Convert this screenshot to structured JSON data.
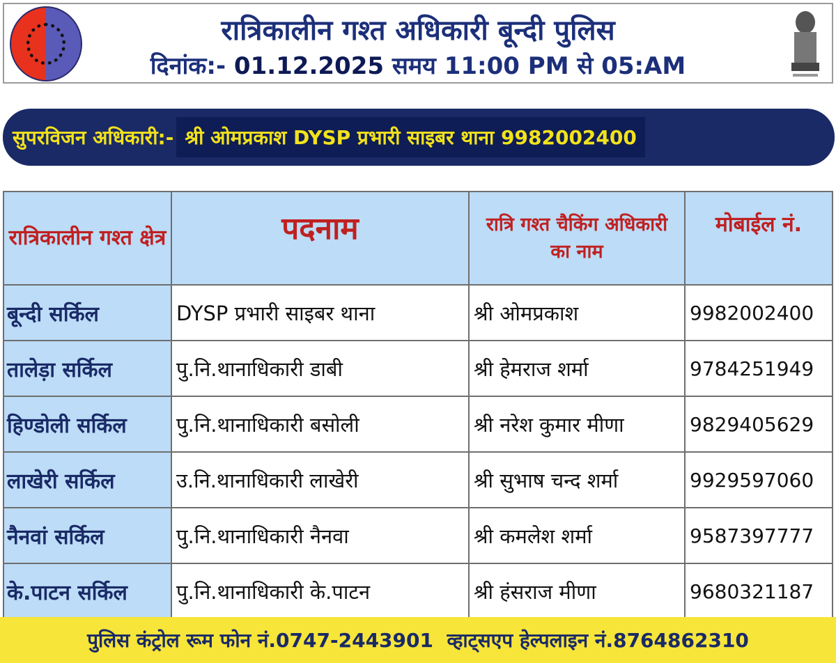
{
  "header": {
    "title": "रात्रिकालीन गश्त अधिकारी बून्दी पुलिस",
    "date_label": "दिनांक:-",
    "date": "01.12.2025",
    "time": "समय 11:00 PM से 05:AM",
    "left_logo": "rajasthan-police-logo",
    "right_logo": "ashoka-emblem"
  },
  "supervision": {
    "label": "सुपरविजन अधिकारी:-",
    "value": "श्री ओमप्रकाश DYSP प्रभारी साइबर थाना 9982002400"
  },
  "table": {
    "headers": [
      "रात्रिकालीन गश्त क्षेत्र",
      "पदनाम",
      "रात्रि गश्त चैकिंग अधिकारी का नाम",
      "मोबाईल नं."
    ],
    "rows": [
      [
        "बून्दी सर्किल",
        "DYSP प्रभारी साइबर थाना",
        "श्री ओमप्रकाश",
        "9982002400"
      ],
      [
        "तालेड़ा सर्किल",
        "पु.नि.थानाधिकारी डाबी",
        "श्री हेमराज शर्मा",
        "9784251949"
      ],
      [
        "हिण्डोली सर्किल",
        "पु.नि.थानाधिकारी बसोली",
        "श्री नरेश कुमार मीणा",
        "9829405629"
      ],
      [
        "लाखेरी सर्किल",
        "उ.नि.थानाधिकारी लाखेरी",
        "श्री सुभाष चन्द शर्मा",
        "9929597060"
      ],
      [
        "नैनवां सर्किल",
        "पु.नि.थानाधिकारी नैनवा",
        "श्री कमलेश शर्मा",
        "9587397777"
      ],
      [
        "के.पाटन सर्किल",
        "पु.नि.थानाधिकारी के.पाटन",
        "श्री हंसराज मीणा",
        "9680321187"
      ]
    ]
  },
  "footer": {
    "text": "पुलिस कंट्रोल रूम फोन नं.0747-2443901  व्हाट्सएप हेल्पलाइन नं.8764862310"
  },
  "colors": {
    "navy": "#1a2a66",
    "yellow": "#f7e53a",
    "header_red": "#c02020",
    "light_blue": "#bcdcf7"
  }
}
